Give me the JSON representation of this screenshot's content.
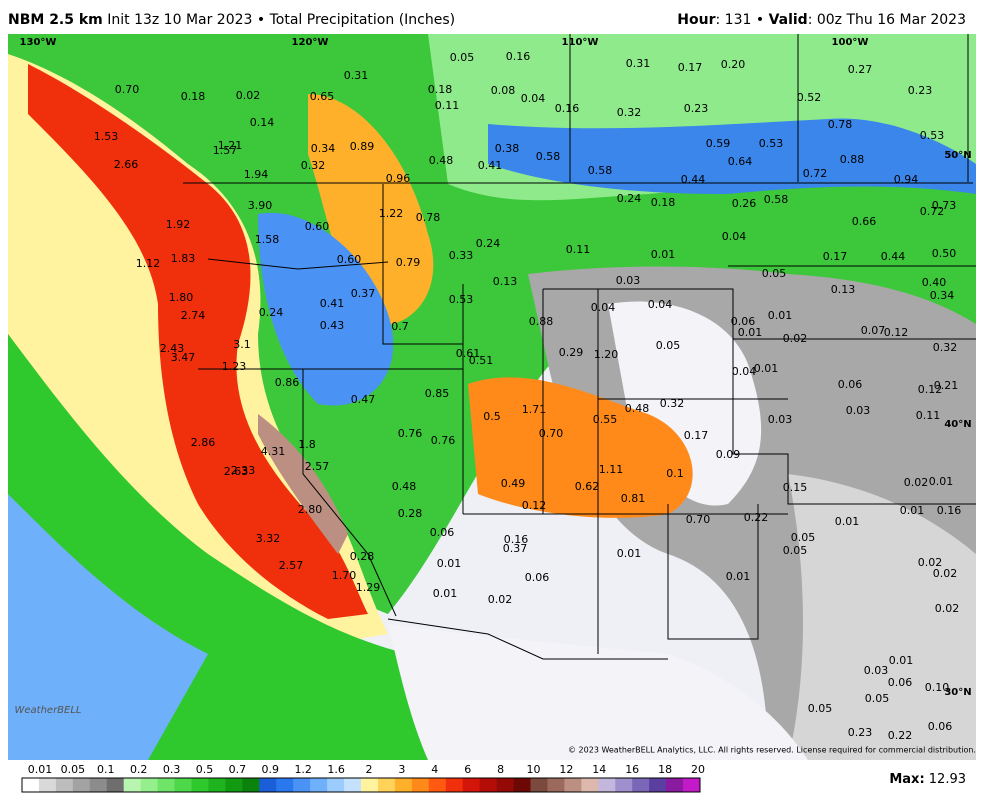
{
  "header": {
    "title": "NBM 2.5 km",
    "subtitle": "Init 13z 10 Mar 2023 • Total Precipitation (Inches)",
    "hour_label": "Hour",
    "hour_value": ": 131 •",
    "valid_label": "Valid",
    "valid_value": ": 00z Thu 16 Mar 2023"
  },
  "graticule": [
    "130°W",
    "120°W",
    "110°W",
    "100°W",
    "50°N",
    "40°N",
    "30°N"
  ],
  "map_labels": [
    "0.05",
    "0.16",
    "0.31",
    "0.17",
    "0.20",
    "0.27",
    "0.23",
    "0.70",
    "0.18",
    "0.02",
    "0.31",
    "0.18",
    "0.11",
    "0.08",
    "0.04",
    "0.16",
    "0.32",
    "0.23",
    "0.52",
    "0.78",
    "0.53",
    "0.14",
    "0.65",
    "1.53",
    "1.21",
    "1.57",
    "0.34",
    "0.89",
    "0.38",
    "0.58",
    "0.59",
    "0.53",
    "0.64",
    "0.88",
    "2.66",
    "0.32",
    "0.48",
    "0.41",
    "0.58",
    "0.72",
    "0.94",
    "1.94",
    "0.96",
    "0.44",
    "3.90",
    "0.24",
    "0.18",
    "0.26",
    "0.58",
    "0.73",
    "0.72",
    "1.22",
    "0.78",
    "1.92",
    "0.60",
    "0.66",
    "0.04",
    "1.58",
    "0.24",
    "0.11",
    "0.01",
    "1.12",
    "1.83",
    "0.60",
    "0.79",
    "0.33",
    "0.17",
    "0.44",
    "0.50",
    "0.05",
    "0.13",
    "0.03",
    "0.40",
    "0.13",
    "1.80",
    "0.37",
    "0.34",
    "0.53",
    "0.04",
    "0.04",
    "0.41",
    "2.74",
    "0.24",
    "0.88",
    "0.06",
    "0.01",
    "0.43",
    "0.7",
    "0.01",
    "0.02",
    "0.07",
    "0.12",
    "3.1",
    "2.43",
    "0.05",
    "0.32",
    "3.47",
    "0.29",
    "1.20",
    "0.61",
    "0.51",
    "0.04",
    "0.01",
    "1.23",
    "0.86",
    "0.06",
    "0.12",
    "0.21",
    "0.85",
    "0.47",
    "0.32",
    "0.48",
    "0.03",
    "0.5",
    "1.71",
    "0.55",
    "0.11",
    "0.03",
    "0.76",
    "0.76",
    "0.70",
    "0.17",
    "2.86",
    "4.31",
    "1.8",
    "0.09",
    "2.57",
    "2.63",
    "2.33",
    "1.11",
    "0.1",
    "0.48",
    "0.49",
    "0.62",
    "0.15",
    "0.02",
    "0.01",
    "0.81",
    "0.12",
    "2.80",
    "0.28",
    "0.70",
    "0.22",
    "0.01",
    "0.16",
    "0.01",
    "0.06",
    "0.16",
    "3.32",
    "0.37",
    "0.05",
    "0.05",
    "0.01",
    "0.28",
    "0.01",
    "2.57",
    "1.70",
    "0.02",
    "0.02",
    "0.06",
    "0.01",
    "1.29",
    "0.01",
    "0.02",
    "0.02",
    "0.01",
    "0.03",
    "0.06",
    "0.10",
    "0.05",
    "0.05",
    "0.06",
    "0.23",
    "0.22"
  ],
  "copyright": "© 2023 WeatherBELL Analytics, LLC. All rights reserved. License required for commercial distribution.",
  "logo": "WeatherBELL",
  "colorbar": {
    "labels": [
      0.01,
      0.05,
      0.1,
      0.2,
      0.3,
      0.5,
      0.7,
      0.9,
      1.2,
      1.6,
      2,
      3,
      4,
      6,
      8,
      10,
      12,
      14,
      16,
      18,
      20
    ],
    "colors": [
      "#ffffff",
      "#d9d9d9",
      "#bdbdbd",
      "#a3a3a3",
      "#8c8c8c",
      "#6e6e6e",
      "#b8f5b0",
      "#94ef8c",
      "#6ee468",
      "#4dd84a",
      "#2fc92e",
      "#1fb31f",
      "#139a13",
      "#0b820b",
      "#1a5fd8",
      "#2a78ee",
      "#4a93f5",
      "#6fb0fa",
      "#9ccbfd",
      "#c4e2fe",
      "#fff3a0",
      "#ffd35a",
      "#ffb02a",
      "#ff8a1a",
      "#ff5a10",
      "#f0300c",
      "#d4160a",
      "#b40d08",
      "#940a06",
      "#6d0805",
      "#7a4a3e",
      "#9b6a5c",
      "#bb8f82",
      "#dcb8ad",
      "#c4b7de",
      "#9f8fcc",
      "#7b67b8",
      "#5b3fa0",
      "#8a1aa0",
      "#c21ac8"
    ]
  },
  "max_label": "Max:",
  "max_value": "12.93"
}
